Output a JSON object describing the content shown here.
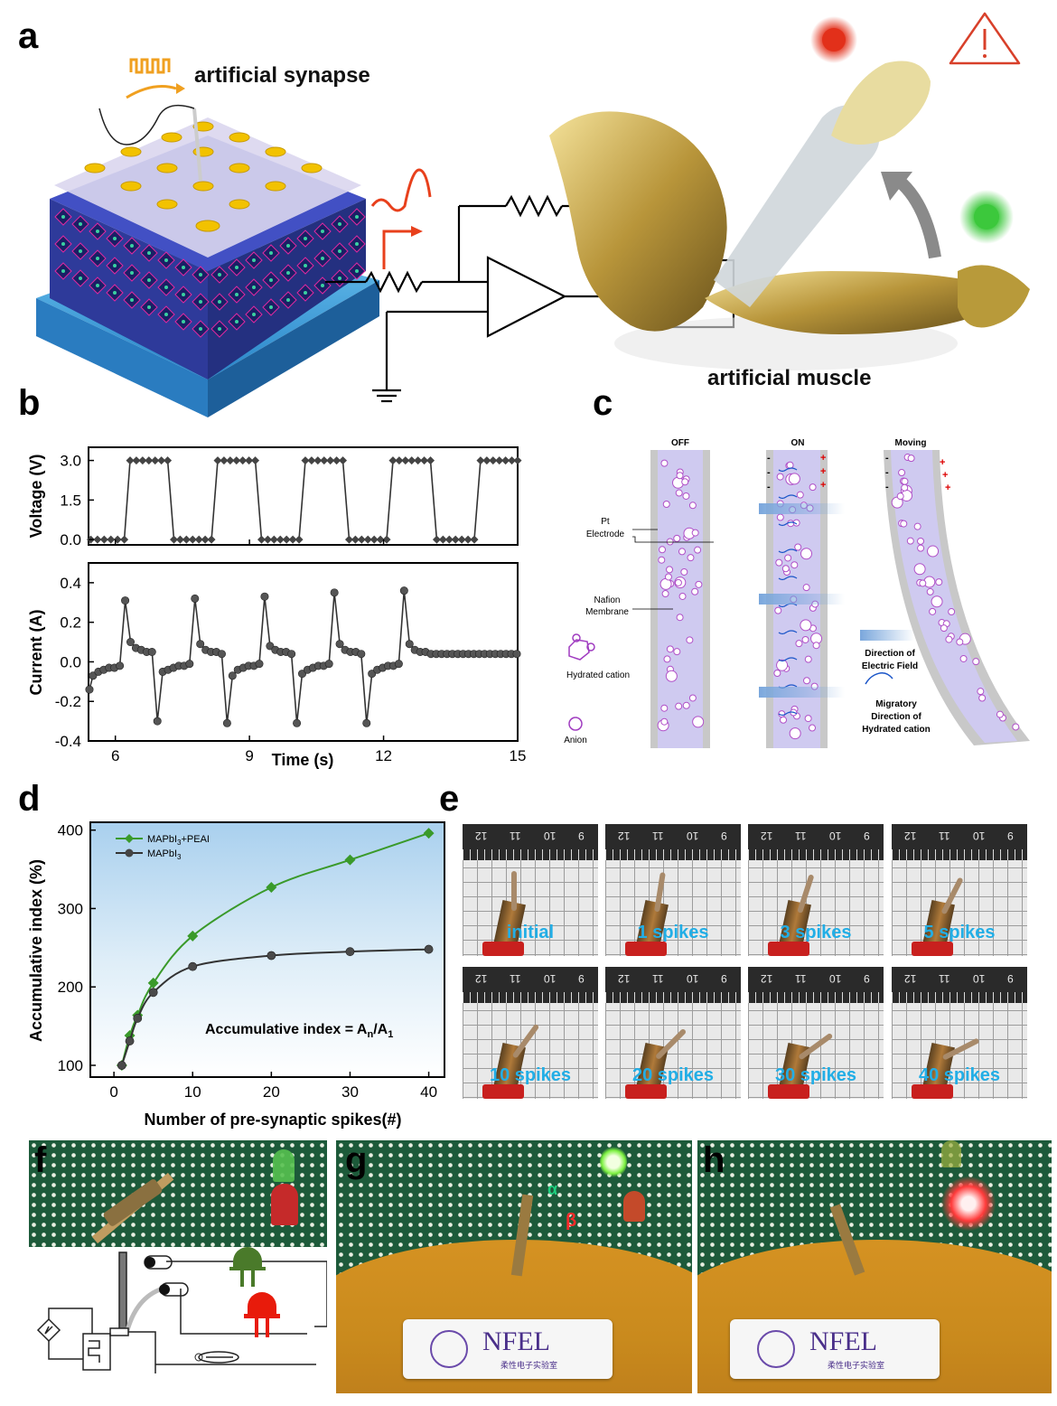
{
  "panel_labels": {
    "a": "a",
    "b": "b",
    "c": "c",
    "d": "d",
    "e": "e",
    "f": "f",
    "g": "g",
    "h": "h"
  },
  "panel_a": {
    "synapse_label": "artificial synapse",
    "muscle_label": "artificial muscle",
    "colors": {
      "substrate": "#3aa6e6",
      "octahedron": "#3a47b8",
      "electrode": "#f2c200",
      "signal_red": "#e8401c",
      "signal_orange": "#f0a020",
      "led_red": "#e2301a",
      "led_green": "#3cc83c",
      "arm_gold": "#b89a3a"
    }
  },
  "panel_b": {
    "voltage_axis_label": "Voltage (V)",
    "current_axis_label": "Current (A)",
    "x_axis_label": "Time (s)"
  },
  "panel_c": {
    "titles": [
      "OFF",
      "ON",
      "Moving"
    ],
    "pt_electrode": "Pt\nElectrode",
    "nafion": "Nafion\nMembrane",
    "hydrated_cation": "Hydrated cation",
    "anion": "Anion",
    "field_direction": "Direction of\nElectric Field",
    "migratory": "Migratory\nDirection of\nHydrated cation"
  },
  "panel_d": {
    "equation": "Accumulative index = A",
    "equation_sub_n": "n",
    "equation_slash": "/A",
    "equation_sub_1": "1"
  },
  "panel_e": {
    "labels": [
      "initial",
      "1 spikes",
      "3 spikes",
      "5 spikes",
      "10 spikes",
      "20 spikes",
      "30 spikes",
      "40 spikes"
    ],
    "ruler_numbers": [
      "12",
      "11",
      "10",
      "9"
    ]
  },
  "panel_g": {
    "alpha": "α",
    "beta": "β",
    "badge_main": "NFEL",
    "badge_sub": "柔性电子实验室"
  },
  "panel_h": {
    "badge_main": "NFEL",
    "badge_sub": "柔性电子实验室"
  },
  "chart_data": [
    {
      "type": "line",
      "title": "",
      "xlabel": "Time (s)",
      "ylabel": "Voltage (V)",
      "xlim": [
        5.4,
        15
      ],
      "ylim": [
        -0.2,
        3.5
      ],
      "yticks": [
        "0.0",
        "1.5",
        "3.0"
      ],
      "xticks": [
        "6",
        "9",
        "12",
        "15"
      ],
      "series": [
        {
          "x": [
            5.45,
            5.6,
            5.75,
            5.9,
            6.05,
            6.2,
            6.33,
            6.47,
            6.61,
            6.75,
            6.89,
            7.03,
            7.17,
            7.31,
            7.45,
            7.59,
            7.73,
            7.87,
            8.01,
            8.15,
            8.29,
            8.43,
            8.57,
            8.71,
            8.85,
            8.99,
            9.13,
            9.27,
            9.41,
            9.55,
            9.69,
            9.83,
            9.97,
            10.11,
            10.25,
            10.39,
            10.53,
            10.67,
            10.81,
            10.95,
            11.09,
            11.23,
            11.37,
            11.51,
            11.65,
            11.79,
            11.93,
            12.07,
            12.21,
            12.35,
            12.49,
            12.63,
            12.77,
            12.91,
            13.05,
            13.19,
            13.33,
            13.47,
            13.61,
            13.75,
            13.89,
            14.03,
            14.17,
            14.31,
            14.45,
            14.59,
            14.73,
            14.87,
            15.0
          ],
          "values": [
            0,
            0,
            0,
            0,
            0,
            0,
            3,
            3,
            3,
            3,
            3,
            3,
            3,
            0,
            0,
            0,
            0,
            0,
            0,
            0,
            3,
            3,
            3,
            3,
            3,
            3,
            3,
            0,
            0,
            0,
            0,
            0,
            0,
            0,
            3,
            3,
            3,
            3,
            3,
            3,
            3,
            0,
            0,
            0,
            0,
            0,
            0,
            0,
            3,
            3,
            3,
            3,
            3,
            3,
            3,
            0,
            0,
            0,
            0,
            0,
            0,
            0,
            3,
            3,
            3,
            3,
            3,
            3,
            3
          ]
        }
      ]
    },
    {
      "type": "line",
      "title": "",
      "xlabel": "Time (s)",
      "ylabel": "Current (A)",
      "xlim": [
        5.4,
        15
      ],
      "ylim": [
        -0.4,
        0.5
      ],
      "yticks": [
        "-0.4",
        "-0.2",
        "0.0",
        "0.2",
        "0.4"
      ],
      "xticks": [
        "6",
        "9",
        "12",
        "15"
      ],
      "series": [
        {
          "x": [
            5.42,
            5.5,
            5.62,
            5.74,
            5.86,
            5.98,
            6.1,
            6.22,
            6.34,
            6.46,
            6.58,
            6.7,
            6.82,
            6.94,
            7.06,
            7.18,
            7.3,
            7.42,
            7.54,
            7.66,
            7.78,
            7.9,
            8.02,
            8.14,
            8.26,
            8.38,
            8.5,
            8.62,
            8.74,
            8.86,
            8.98,
            9.1,
            9.22,
            9.34,
            9.46,
            9.58,
            9.7,
            9.82,
            9.94,
            10.06,
            10.18,
            10.3,
            10.42,
            10.54,
            10.66,
            10.78,
            10.9,
            11.02,
            11.14,
            11.26,
            11.38,
            11.5,
            11.62,
            11.74,
            11.86,
            11.98,
            12.1,
            12.22,
            12.34,
            12.46,
            12.58,
            12.7,
            12.82,
            12.94,
            13.06,
            13.18,
            13.3,
            13.42,
            13.54,
            13.66,
            13.78,
            13.9,
            14.02,
            14.14,
            14.26,
            14.38,
            14.5,
            14.62,
            14.74,
            14.86,
            14.98
          ],
          "values": [
            -0.14,
            -0.07,
            -0.05,
            -0.04,
            -0.03,
            -0.03,
            -0.02,
            0.31,
            0.1,
            0.07,
            0.06,
            0.05,
            0.05,
            -0.3,
            -0.05,
            -0.04,
            -0.03,
            -0.02,
            -0.02,
            -0.01,
            0.32,
            0.09,
            0.06,
            0.05,
            0.05,
            0.04,
            -0.31,
            -0.07,
            -0.04,
            -0.03,
            -0.02,
            -0.02,
            -0.01,
            0.33,
            0.08,
            0.06,
            0.05,
            0.05,
            0.04,
            -0.31,
            -0.06,
            -0.04,
            -0.03,
            -0.02,
            -0.02,
            -0.01,
            0.35,
            0.09,
            0.06,
            0.05,
            0.05,
            0.04,
            -0.31,
            -0.06,
            -0.04,
            -0.03,
            -0.02,
            -0.02,
            -0.01,
            0.36,
            0.09,
            0.06,
            0.05,
            0.05,
            0.04,
            0.04,
            0.04,
            0.04,
            0.04,
            0.04,
            0.04,
            0.04,
            0.04,
            0.04,
            0.04,
            0.04,
            0.04,
            0.04,
            0.04,
            0.04,
            0.04
          ]
        }
      ]
    },
    {
      "type": "line",
      "title": "",
      "xlabel": "Number of pre-synaptic spikes(#)",
      "ylabel": "Accumulative  index (%)",
      "xlim": [
        -3,
        42
      ],
      "ylim": [
        85,
        410
      ],
      "xticks": [
        "0",
        "10",
        "20",
        "30",
        "40"
      ],
      "yticks": [
        "100",
        "200",
        "300",
        "400"
      ],
      "series": [
        {
          "name": "MAPbI3+PEAI",
          "name_base": "MAPbI",
          "name_sub": "3",
          "name_tail": "+PEAI",
          "color": "#3a9a2a",
          "marker": "diamond",
          "x": [
            1,
            2,
            3,
            5,
            10,
            20,
            30,
            40
          ],
          "values": [
            100,
            138,
            164,
            205,
            265,
            327,
            362,
            396
          ]
        },
        {
          "name": "MAPbI3",
          "name_base": "MAPbI",
          "name_sub": "3",
          "name_tail": "",
          "color": "#333333",
          "marker": "circle",
          "x": [
            1,
            2,
            3,
            5,
            10,
            20,
            30,
            40
          ],
          "values": [
            100,
            131,
            160,
            193,
            226,
            240,
            245,
            248
          ]
        }
      ],
      "legend": "top-left"
    }
  ]
}
